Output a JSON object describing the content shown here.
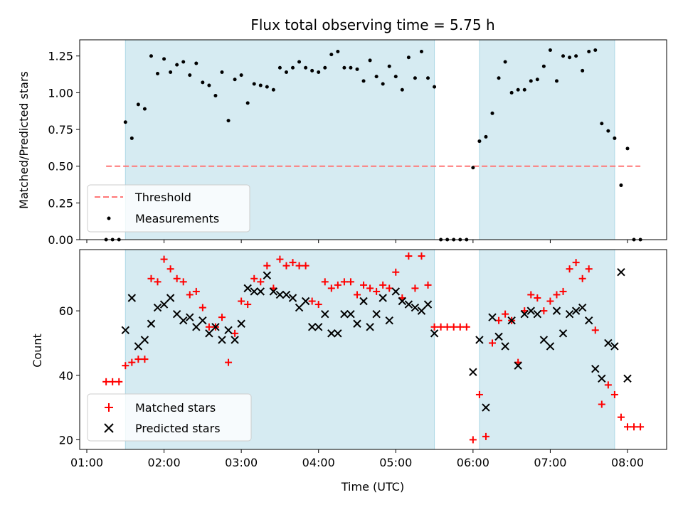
{
  "chart_data": [
    {
      "type": "scatter",
      "title": "Flux total observing time = 5.75 h",
      "xlabel": "",
      "ylabel": "Matched/Predicted stars",
      "xlim": [
        "01:00",
        "08:35"
      ],
      "ylim": [
        0,
        1.36
      ],
      "yticks": [
        "0.00",
        "0.25",
        "0.50",
        "0.75",
        "1.00",
        "1.25"
      ],
      "grid": false,
      "legend_position": "lower-left",
      "shaded_intervals": [
        [
          "01:30",
          "05:30"
        ],
        [
          "06:05",
          "07:50"
        ]
      ],
      "threshold": {
        "name": "Threshold",
        "y": 0.5,
        "x_from": "01:15",
        "x_to": "08:10",
        "color": "#ff7777",
        "style": "dashed"
      },
      "series": [
        {
          "name": "Measurements",
          "color": "#000000",
          "marker": "dot",
          "points": [
            [
              "01:15",
              0
            ],
            [
              "01:20",
              0
            ],
            [
              "01:25",
              0
            ],
            [
              "01:30",
              0.8
            ],
            [
              "01:35",
              0.69
            ],
            [
              "01:40",
              0.92
            ],
            [
              "01:45",
              0.89
            ],
            [
              "01:50",
              1.25
            ],
            [
              "01:55",
              1.13
            ],
            [
              "02:00",
              1.23
            ],
            [
              "02:05",
              1.14
            ],
            [
              "02:10",
              1.19
            ],
            [
              "02:15",
              1.21
            ],
            [
              "02:20",
              1.12
            ],
            [
              "02:25",
              1.2
            ],
            [
              "02:30",
              1.07
            ],
            [
              "02:35",
              1.05
            ],
            [
              "02:40",
              0.98
            ],
            [
              "02:45",
              1.14
            ],
            [
              "02:50",
              0.81
            ],
            [
              "02:55",
              1.09
            ],
            [
              "03:00",
              1.12
            ],
            [
              "03:05",
              0.93
            ],
            [
              "03:10",
              1.06
            ],
            [
              "03:15",
              1.05
            ],
            [
              "03:20",
              1.04
            ],
            [
              "03:25",
              1.02
            ],
            [
              "03:30",
              1.17
            ],
            [
              "03:35",
              1.14
            ],
            [
              "03:40",
              1.17
            ],
            [
              "03:45",
              1.21
            ],
            [
              "03:50",
              1.17
            ],
            [
              "03:55",
              1.15
            ],
            [
              "04:00",
              1.14
            ],
            [
              "04:05",
              1.17
            ],
            [
              "04:10",
              1.26
            ],
            [
              "04:15",
              1.28
            ],
            [
              "04:20",
              1.17
            ],
            [
              "04:25",
              1.17
            ],
            [
              "04:30",
              1.16
            ],
            [
              "04:35",
              1.08
            ],
            [
              "04:40",
              1.22
            ],
            [
              "04:45",
              1.11
            ],
            [
              "04:50",
              1.06
            ],
            [
              "04:55",
              1.18
            ],
            [
              "05:00",
              1.11
            ],
            [
              "05:05",
              1.02
            ],
            [
              "05:10",
              1.24
            ],
            [
              "05:15",
              1.1
            ],
            [
              "05:20",
              1.28
            ],
            [
              "05:25",
              1.1
            ],
            [
              "05:30",
              1.04
            ],
            [
              "05:35",
              0
            ],
            [
              "05:40",
              0
            ],
            [
              "05:45",
              0
            ],
            [
              "05:50",
              0
            ],
            [
              "05:55",
              0
            ],
            [
              "06:00",
              0.49
            ],
            [
              "06:05",
              0.67
            ],
            [
              "06:10",
              0.7
            ],
            [
              "06:15",
              0.86
            ],
            [
              "06:20",
              1.1
            ],
            [
              "06:25",
              1.21
            ],
            [
              "06:30",
              1.0
            ],
            [
              "06:35",
              1.02
            ],
            [
              "06:40",
              1.02
            ],
            [
              "06:45",
              1.08
            ],
            [
              "06:50",
              1.09
            ],
            [
              "06:55",
              1.18
            ],
            [
              "07:00",
              1.29
            ],
            [
              "07:05",
              1.08
            ],
            [
              "07:10",
              1.25
            ],
            [
              "07:15",
              1.24
            ],
            [
              "07:20",
              1.25
            ],
            [
              "07:25",
              1.15
            ],
            [
              "07:30",
              1.28
            ],
            [
              "07:35",
              1.29
            ],
            [
              "07:40",
              0.79
            ],
            [
              "07:45",
              0.74
            ],
            [
              "07:50",
              0.69
            ],
            [
              "07:55",
              0.37
            ],
            [
              "08:00",
              0.62
            ],
            [
              "08:05",
              0
            ],
            [
              "08:10",
              0
            ]
          ]
        }
      ]
    },
    {
      "type": "scatter",
      "title": "",
      "xlabel": "Time (UTC)",
      "ylabel": "Count",
      "xlim": [
        "01:00",
        "08:35"
      ],
      "ylim": [
        17,
        79
      ],
      "yticks": [
        "20",
        "40",
        "60"
      ],
      "xticks": [
        "01:00",
        "02:00",
        "03:00",
        "04:00",
        "05:00",
        "06:00",
        "07:00",
        "08:00"
      ],
      "grid": false,
      "legend_position": "lower-left",
      "shaded_intervals": [
        [
          "01:30",
          "05:30"
        ],
        [
          "06:05",
          "07:50"
        ]
      ],
      "series": [
        {
          "name": "Matched stars",
          "color": "#ff0000",
          "marker": "plus",
          "points": [
            [
              "01:15",
              38
            ],
            [
              "01:20",
              38
            ],
            [
              "01:25",
              38
            ],
            [
              "01:30",
              43
            ],
            [
              "01:35",
              44
            ],
            [
              "01:40",
              45
            ],
            [
              "01:45",
              45
            ],
            [
              "01:50",
              70
            ],
            [
              "01:55",
              69
            ],
            [
              "02:00",
              76
            ],
            [
              "02:05",
              73
            ],
            [
              "02:10",
              70
            ],
            [
              "02:15",
              69
            ],
            [
              "02:20",
              65
            ],
            [
              "02:25",
              66
            ],
            [
              "02:30",
              61
            ],
            [
              "02:35",
              55
            ],
            [
              "02:40",
              55
            ],
            [
              "02:45",
              58
            ],
            [
              "02:50",
              44
            ],
            [
              "02:55",
              53
            ],
            [
              "03:00",
              63
            ],
            [
              "03:05",
              62
            ],
            [
              "03:10",
              70
            ],
            [
              "03:15",
              69
            ],
            [
              "03:20",
              74
            ],
            [
              "03:25",
              67
            ],
            [
              "03:30",
              76
            ],
            [
              "03:35",
              74
            ],
            [
              "03:40",
              75
            ],
            [
              "03:45",
              74
            ],
            [
              "03:50",
              74
            ],
            [
              "03:55",
              63
            ],
            [
              "04:00",
              62
            ],
            [
              "04:05",
              69
            ],
            [
              "04:10",
              67
            ],
            [
              "04:15",
              68
            ],
            [
              "04:20",
              69
            ],
            [
              "04:25",
              69
            ],
            [
              "04:30",
              65
            ],
            [
              "04:35",
              68
            ],
            [
              "04:40",
              67
            ],
            [
              "04:45",
              66
            ],
            [
              "04:50",
              68
            ],
            [
              "04:55",
              67
            ],
            [
              "05:00",
              72
            ],
            [
              "05:05",
              64
            ],
            [
              "05:10",
              77
            ],
            [
              "05:15",
              67
            ],
            [
              "05:20",
              77
            ],
            [
              "05:25",
              68
            ],
            [
              "05:30",
              55
            ],
            [
              "05:35",
              55
            ],
            [
              "05:40",
              55
            ],
            [
              "05:45",
              55
            ],
            [
              "05:50",
              55
            ],
            [
              "05:55",
              55
            ],
            [
              "06:00",
              20
            ],
            [
              "06:05",
              34
            ],
            [
              "06:10",
              21
            ],
            [
              "06:15",
              50
            ],
            [
              "06:20",
              57
            ],
            [
              "06:25",
              59
            ],
            [
              "06:30",
              57
            ],
            [
              "06:35",
              44
            ],
            [
              "06:40",
              60
            ],
            [
              "06:45",
              65
            ],
            [
              "06:50",
              64
            ],
            [
              "06:55",
              60
            ],
            [
              "07:00",
              63
            ],
            [
              "07:05",
              65
            ],
            [
              "07:10",
              66
            ],
            [
              "07:15",
              73
            ],
            [
              "07:20",
              75
            ],
            [
              "07:25",
              70
            ],
            [
              "07:30",
              73
            ],
            [
              "07:35",
              54
            ],
            [
              "07:40",
              31
            ],
            [
              "07:45",
              37
            ],
            [
              "07:50",
              34
            ],
            [
              "07:55",
              27
            ],
            [
              "08:00",
              24
            ],
            [
              "08:05",
              24
            ],
            [
              "08:10",
              24
            ]
          ]
        },
        {
          "name": "Predicted stars",
          "color": "#000000",
          "marker": "x",
          "points": [
            [
              "01:30",
              54
            ],
            [
              "01:35",
              64
            ],
            [
              "01:40",
              49
            ],
            [
              "01:45",
              51
            ],
            [
              "01:50",
              56
            ],
            [
              "01:55",
              61
            ],
            [
              "02:00",
              62
            ],
            [
              "02:05",
              64
            ],
            [
              "02:10",
              59
            ],
            [
              "02:15",
              57
            ],
            [
              "02:20",
              58
            ],
            [
              "02:25",
              55
            ],
            [
              "02:30",
              57
            ],
            [
              "02:35",
              53
            ],
            [
              "02:40",
              55
            ],
            [
              "02:45",
              51
            ],
            [
              "02:50",
              54
            ],
            [
              "02:55",
              51
            ],
            [
              "03:00",
              56
            ],
            [
              "03:05",
              67
            ],
            [
              "03:10",
              66
            ],
            [
              "03:15",
              66
            ],
            [
              "03:20",
              71
            ],
            [
              "03:25",
              66
            ],
            [
              "03:30",
              65
            ],
            [
              "03:35",
              65
            ],
            [
              "03:40",
              64
            ],
            [
              "03:45",
              61
            ],
            [
              "03:50",
              63
            ],
            [
              "03:55",
              55
            ],
            [
              "04:00",
              55
            ],
            [
              "04:05",
              59
            ],
            [
              "04:10",
              53
            ],
            [
              "04:15",
              53
            ],
            [
              "04:20",
              59
            ],
            [
              "04:25",
              59
            ],
            [
              "04:30",
              56
            ],
            [
              "04:35",
              63
            ],
            [
              "04:40",
              55
            ],
            [
              "04:45",
              59
            ],
            [
              "04:50",
              64
            ],
            [
              "04:55",
              57
            ],
            [
              "05:00",
              66
            ],
            [
              "05:05",
              63
            ],
            [
              "05:10",
              62
            ],
            [
              "05:15",
              61
            ],
            [
              "05:20",
              60
            ],
            [
              "05:25",
              62
            ],
            [
              "05:30",
              53
            ],
            [
              "06:00",
              41
            ],
            [
              "06:05",
              51
            ],
            [
              "06:10",
              30
            ],
            [
              "06:15",
              58
            ],
            [
              "06:20",
              52
            ],
            [
              "06:25",
              49
            ],
            [
              "06:30",
              57
            ],
            [
              "06:35",
              43
            ],
            [
              "06:40",
              59
            ],
            [
              "06:45",
              60
            ],
            [
              "06:50",
              59
            ],
            [
              "06:55",
              51
            ],
            [
              "07:00",
              49
            ],
            [
              "07:05",
              60
            ],
            [
              "07:10",
              53
            ],
            [
              "07:15",
              59
            ],
            [
              "07:20",
              60
            ],
            [
              "07:25",
              61
            ],
            [
              "07:30",
              57
            ],
            [
              "07:35",
              42
            ],
            [
              "07:40",
              39
            ],
            [
              "07:45",
              50
            ],
            [
              "07:50",
              49
            ],
            [
              "07:55",
              72
            ],
            [
              "08:00",
              39
            ]
          ]
        }
      ]
    }
  ],
  "colors": {
    "shade": "#add8e6",
    "threshold": "#ff7777",
    "matched": "#ff0000",
    "predicted": "#000000",
    "measurements": "#000000"
  }
}
